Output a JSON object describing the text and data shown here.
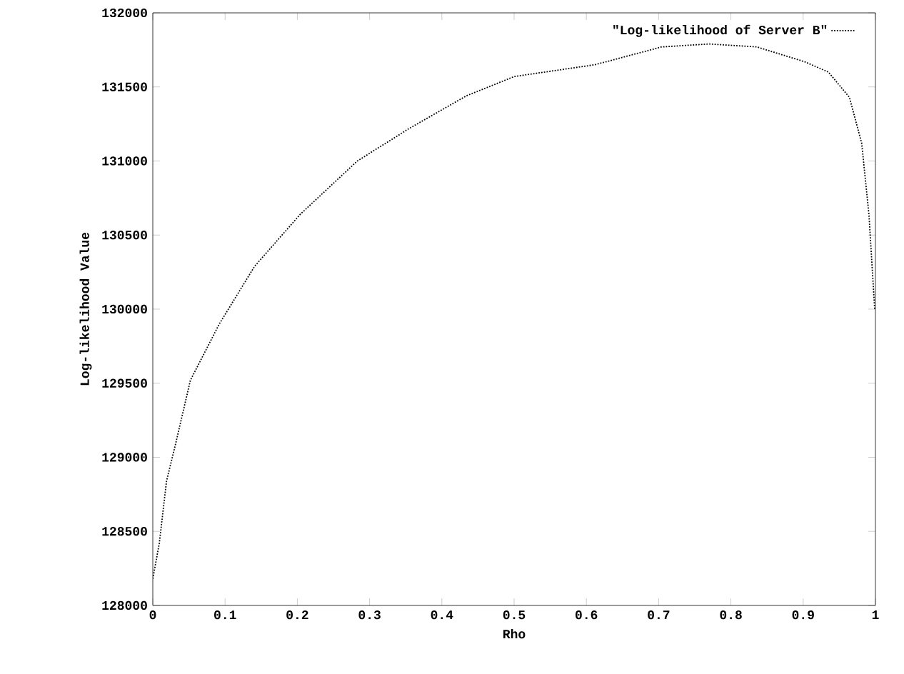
{
  "chart_data": {
    "type": "line",
    "xlabel": "Rho",
    "ylabel": "Log-likelihood Value",
    "xlim": [
      0,
      1
    ],
    "ylim": [
      128000,
      132000
    ],
    "xticks": [
      0,
      0.1,
      0.2,
      0.3,
      0.4,
      0.5,
      0.6,
      0.7,
      0.8,
      0.9,
      1
    ],
    "yticks": [
      128000,
      128500,
      129000,
      129500,
      130000,
      130500,
      131000,
      131500,
      132000
    ],
    "legend": "top right",
    "grid": false,
    "line_style": "dotted",
    "marker": "none",
    "series": [
      {
        "name": "\"Log-likelihood of Server B\"",
        "color": "#000000",
        "x": [
          0.0,
          0.009,
          0.019,
          0.032,
          0.052,
          0.092,
          0.141,
          0.204,
          0.283,
          0.355,
          0.434,
          0.5,
          0.612,
          0.704,
          0.77,
          0.836,
          0.902,
          0.935,
          0.964,
          0.981,
          0.991,
          0.997,
          0.999
        ],
        "values": [
          128180,
          128420,
          128840,
          129100,
          129520,
          129900,
          130290,
          130640,
          131000,
          131220,
          131440,
          131570,
          131650,
          131770,
          131790,
          131770,
          131670,
          131600,
          131430,
          131120,
          130640,
          130160,
          130000
        ]
      }
    ]
  }
}
